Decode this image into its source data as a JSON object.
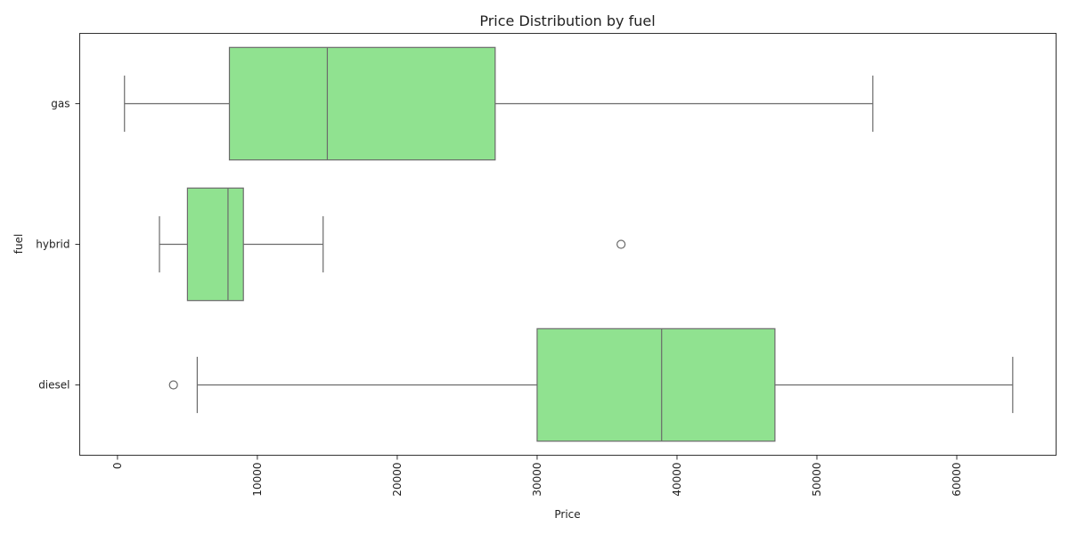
{
  "chart_data": {
    "type": "box",
    "orientation": "horizontal",
    "title": "Price Distribution by fuel",
    "xlabel": "Price",
    "ylabel": "fuel",
    "xlim": [
      -2700,
      67100
    ],
    "xticks": [
      0,
      10000,
      20000,
      30000,
      40000,
      50000,
      60000
    ],
    "xtick_labels": [
      "0",
      "10000",
      "20000",
      "30000",
      "40000",
      "50000",
      "60000"
    ],
    "xtick_rotation": 90,
    "grid": false,
    "legend": false,
    "box_color": "#90e290",
    "line_color": "#6b6b6b",
    "categories": [
      "gas",
      "hybrid",
      "diesel"
    ],
    "boxes": [
      {
        "category": "gas",
        "whisker_low": 500,
        "q1": 8000,
        "median": 15000,
        "q3": 27000,
        "whisker_high": 54000,
        "outliers": []
      },
      {
        "category": "hybrid",
        "whisker_low": 3000,
        "q1": 5000,
        "median": 7900,
        "q3": 9000,
        "whisker_high": 14700,
        "outliers": [
          36000
        ]
      },
      {
        "category": "diesel",
        "whisker_low": 5700,
        "q1": 30000,
        "median": 38900,
        "q3": 47000,
        "whisker_high": 64000,
        "outliers": [
          4000
        ]
      }
    ]
  }
}
